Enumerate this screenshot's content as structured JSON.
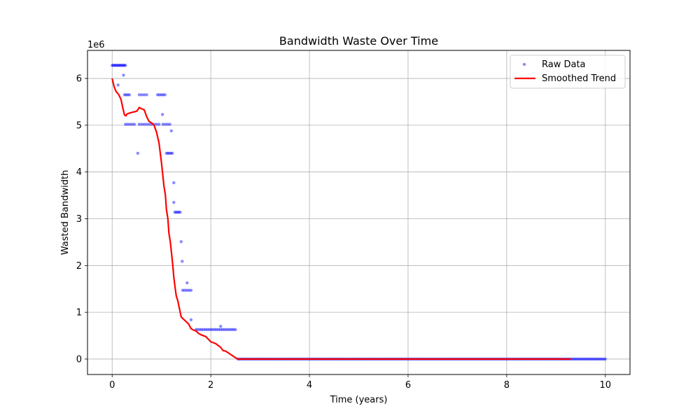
{
  "chart_data": {
    "type": "scatter",
    "title": "Bandwidth Waste Over Time",
    "xlabel": "Time (years)",
    "ylabel": "Wasted Bandwidth",
    "y_offset_label": "1e6",
    "xlim": [
      -0.5,
      10.5
    ],
    "ylim": [
      -0.33,
      6.6
    ],
    "y_unit_multiplier": 1000000,
    "x_ticks": [
      0,
      2,
      4,
      6,
      8,
      10
    ],
    "y_ticks": [
      0,
      1,
      2,
      3,
      4,
      5,
      6
    ],
    "grid": true,
    "legend_position": "top-right",
    "series": [
      {
        "name": "Raw Data",
        "kind": "scatter",
        "color": "#0000ff",
        "clusters": [
          {
            "x_start": 0.0,
            "x_end": 0.27,
            "y": 6.28,
            "n": 14
          },
          {
            "x_start": 0.12,
            "x_end": 0.12,
            "y": 5.86,
            "n": 1
          },
          {
            "x_start": 0.23,
            "x_end": 0.23,
            "y": 6.07,
            "n": 1
          },
          {
            "x_start": 0.25,
            "x_end": 0.35,
            "y": 5.65,
            "n": 4
          },
          {
            "x_start": 0.27,
            "x_end": 0.45,
            "y": 5.02,
            "n": 5
          },
          {
            "x_start": 0.52,
            "x_end": 0.52,
            "y": 4.4,
            "n": 1
          },
          {
            "x_start": 0.55,
            "x_end": 0.7,
            "y": 5.65,
            "n": 4
          },
          {
            "x_start": 0.55,
            "x_end": 0.95,
            "y": 5.02,
            "n": 9
          },
          {
            "x_start": 0.92,
            "x_end": 1.07,
            "y": 5.65,
            "n": 5
          },
          {
            "x_start": 1.02,
            "x_end": 1.02,
            "y": 5.23,
            "n": 1
          },
          {
            "x_start": 1.03,
            "x_end": 1.17,
            "y": 5.02,
            "n": 4
          },
          {
            "x_start": 1.2,
            "x_end": 1.2,
            "y": 4.88,
            "n": 1
          },
          {
            "x_start": 1.1,
            "x_end": 1.22,
            "y": 4.4,
            "n": 5
          },
          {
            "x_start": 1.25,
            "x_end": 1.25,
            "y": 3.77,
            "n": 1
          },
          {
            "x_start": 1.25,
            "x_end": 1.25,
            "y": 3.35,
            "n": 1
          },
          {
            "x_start": 1.27,
            "x_end": 1.38,
            "y": 3.14,
            "n": 5
          },
          {
            "x_start": 1.4,
            "x_end": 1.4,
            "y": 2.51,
            "n": 1
          },
          {
            "x_start": 1.42,
            "x_end": 1.42,
            "y": 2.09,
            "n": 1
          },
          {
            "x_start": 1.52,
            "x_end": 1.52,
            "y": 1.63,
            "n": 1
          },
          {
            "x_start": 1.43,
            "x_end": 1.6,
            "y": 1.47,
            "n": 5
          },
          {
            "x_start": 1.6,
            "x_end": 1.6,
            "y": 0.84,
            "n": 1
          },
          {
            "x_start": 1.7,
            "x_end": 2.5,
            "y": 0.63,
            "n": 22
          },
          {
            "x_start": 2.2,
            "x_end": 2.2,
            "y": 0.7,
            "n": 1
          },
          {
            "x_start": 2.55,
            "x_end": 10.0,
            "y": 0.0,
            "n": 240
          }
        ]
      },
      {
        "name": "Smoothed Trend",
        "kind": "line",
        "color": "#ff0000",
        "x": [
          0.0,
          0.04,
          0.08,
          0.13,
          0.18,
          0.22,
          0.25,
          0.28,
          0.3,
          0.35,
          0.42,
          0.5,
          0.55,
          0.58,
          0.65,
          0.7,
          0.75,
          0.8,
          0.85,
          0.9,
          0.95,
          1.0,
          1.03,
          1.05,
          1.08,
          1.1,
          1.13,
          1.15,
          1.18,
          1.2,
          1.23,
          1.25,
          1.28,
          1.3,
          1.33,
          1.35,
          1.38,
          1.4,
          1.45,
          1.5,
          1.55,
          1.6,
          1.65,
          1.7,
          1.75,
          1.8,
          1.9,
          2.0,
          2.1,
          2.2,
          2.25,
          2.3,
          2.4,
          2.5,
          2.55,
          3.0,
          4.0,
          5.0,
          6.0,
          7.0,
          8.0,
          9.0,
          9.3
        ],
        "y": [
          6.0,
          5.82,
          5.72,
          5.66,
          5.55,
          5.35,
          5.22,
          5.2,
          5.24,
          5.26,
          5.28,
          5.3,
          5.38,
          5.36,
          5.33,
          5.18,
          5.08,
          5.05,
          5.0,
          4.85,
          4.62,
          4.2,
          3.9,
          3.7,
          3.5,
          3.2,
          3.0,
          2.7,
          2.5,
          2.3,
          2.0,
          1.75,
          1.5,
          1.35,
          1.25,
          1.15,
          1.0,
          0.9,
          0.85,
          0.8,
          0.75,
          0.65,
          0.62,
          0.6,
          0.55,
          0.52,
          0.48,
          0.37,
          0.33,
          0.25,
          0.18,
          0.17,
          0.1,
          0.03,
          0.0,
          0.0,
          0.0,
          0.0,
          0.0,
          0.0,
          0.0,
          0.0,
          0.0
        ]
      }
    ]
  }
}
